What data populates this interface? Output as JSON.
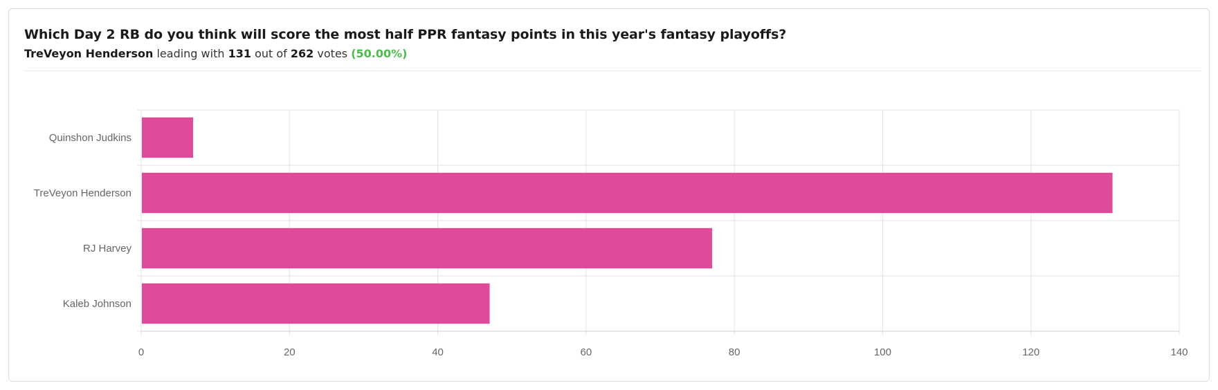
{
  "poll": {
    "question": "Which Day 2 RB do you think will score the most half PPR fantasy points in this year's fantasy playoffs?",
    "leader_name": "TreVeyon Henderson",
    "leading_text": "leading with",
    "votes_count": "131",
    "out_of_text": "out of",
    "total_votes": "262",
    "votes_word": "votes",
    "percent": "(50.00%)"
  },
  "colors": {
    "bar": "#e04a9a",
    "grid": "#e3e3e3",
    "axis_text": "#666666",
    "percent": "#4cbb4a"
  },
  "chart_data": {
    "type": "bar",
    "orientation": "horizontal",
    "categories": [
      "Quinshon Judkins",
      "TreVeyon Henderson",
      "RJ Harvey",
      "Kaleb Johnson"
    ],
    "values": [
      7,
      131,
      77,
      47
    ],
    "xlim": [
      0,
      140
    ],
    "xticks": [
      "0",
      "20",
      "40",
      "60",
      "80",
      "100",
      "120",
      "140"
    ],
    "grid": true,
    "title": "",
    "xlabel": "",
    "ylabel": ""
  }
}
